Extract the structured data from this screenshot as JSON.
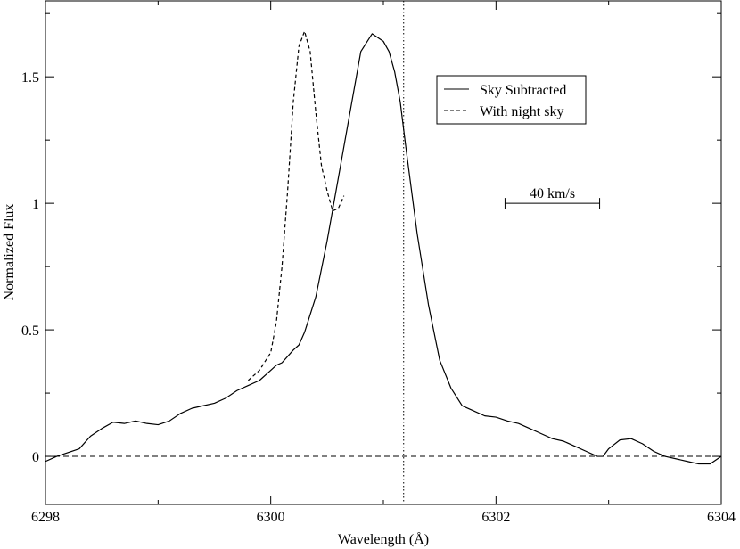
{
  "chart_data": {
    "type": "line",
    "xlabel": "Wavelength (Å)",
    "ylabel": "Normalized Flux",
    "xlim": [
      6298,
      6304
    ],
    "ylim": [
      -0.19,
      1.8
    ],
    "xticks": [
      6298,
      6300,
      6302,
      6304
    ],
    "xtick_labels": [
      "6298",
      "6300",
      "6302",
      "6304"
    ],
    "yticks": [
      0,
      0.5,
      1,
      1.5
    ],
    "ytick_labels": [
      "0",
      "0.5",
      "1",
      "1.5"
    ],
    "grid": false,
    "legend_position": "top-right",
    "reference_lines": {
      "horizontal_dashed_y": 0,
      "vertical_dotted_x": 6301.18
    },
    "annotation": {
      "text": "40 km/s",
      "x_start": 6302.08,
      "x_end": 6302.92,
      "y": 1.0
    },
    "series": [
      {
        "name": "Sky Subtracted",
        "style": "solid",
        "x": [
          6298.0,
          6298.1,
          6298.3,
          6298.4,
          6298.5,
          6298.6,
          6298.7,
          6298.8,
          6298.9,
          6299.0,
          6299.1,
          6299.2,
          6299.3,
          6299.4,
          6299.5,
          6299.6,
          6299.7,
          6299.8,
          6299.9,
          6300.0,
          6300.05,
          6300.1,
          6300.2,
          6300.25,
          6300.3,
          6300.4,
          6300.5,
          6300.6,
          6300.7,
          6300.8,
          6300.9,
          6301.0,
          6301.05,
          6301.1,
          6301.15,
          6301.2,
          6301.3,
          6301.4,
          6301.5,
          6301.6,
          6301.7,
          6301.8,
          6301.9,
          6302.0,
          6302.1,
          6302.2,
          6302.3,
          6302.4,
          6302.5,
          6302.6,
          6302.7,
          6302.8,
          6302.9,
          6302.95,
          6303.0,
          6303.1,
          6303.2,
          6303.3,
          6303.4,
          6303.5,
          6303.6,
          6303.7,
          6303.8,
          6303.9,
          6304.0
        ],
        "y": [
          -0.02,
          0.0,
          0.03,
          0.08,
          0.11,
          0.135,
          0.13,
          0.14,
          0.13,
          0.125,
          0.14,
          0.17,
          0.19,
          0.2,
          0.21,
          0.23,
          0.26,
          0.28,
          0.3,
          0.34,
          0.36,
          0.37,
          0.42,
          0.44,
          0.49,
          0.63,
          0.85,
          1.1,
          1.35,
          1.6,
          1.67,
          1.64,
          1.6,
          1.52,
          1.4,
          1.22,
          0.88,
          0.6,
          0.38,
          0.27,
          0.2,
          0.18,
          0.16,
          0.155,
          0.14,
          0.13,
          0.11,
          0.09,
          0.07,
          0.06,
          0.04,
          0.02,
          0.0,
          0.0,
          0.03,
          0.065,
          0.07,
          0.05,
          0.02,
          0.0,
          -0.01,
          -0.02,
          -0.03,
          -0.03,
          0.0
        ]
      },
      {
        "name": "With night sky",
        "style": "dashed",
        "x": [
          6299.8,
          6299.9,
          6300.0,
          6300.05,
          6300.1,
          6300.15,
          6300.2,
          6300.25,
          6300.3,
          6300.35,
          6300.4,
          6300.45,
          6300.5,
          6300.55,
          6300.6,
          6300.65
        ],
        "y": [
          0.3,
          0.34,
          0.41,
          0.53,
          0.75,
          1.05,
          1.4,
          1.62,
          1.68,
          1.6,
          1.36,
          1.15,
          1.05,
          0.97,
          0.98,
          1.03
        ]
      }
    ]
  }
}
